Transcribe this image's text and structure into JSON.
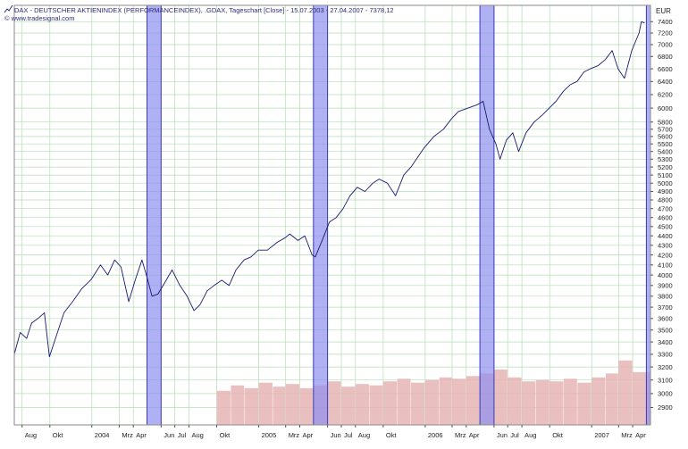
{
  "header": {
    "title": "DAX - DEUTSCHER AKTIENINDEX (PERFORMANCEINDEX), .GDAX, Tageschart [Close] - 15.07.2003 - 27.04.2007 - 7378,12",
    "source": "© www.tradesignal.com",
    "icon": "chart-line-icon"
  },
  "colors": {
    "price_line": "#1a1a6e",
    "highlight_fill": "#8f8ff0",
    "highlight_stroke": "#3a3ab8",
    "grid": "#b4dcb4",
    "volume": "#e6b4b4",
    "frame": "#8a8a8a"
  },
  "chart_data": {
    "type": "line",
    "currency_label": "EUR",
    "x_ticks": [
      {
        "label": "Aug",
        "date": "2003-08-01"
      },
      {
        "label": "Okt",
        "date": "2003-10-01"
      },
      {
        "label": "2004",
        "date": "2004-01-01"
      },
      {
        "label": "Mrz",
        "date": "2004-03-01"
      },
      {
        "label": "Apr",
        "date": "2004-04-01"
      },
      {
        "label": "Jun",
        "date": "2004-06-01"
      },
      {
        "label": "Jul",
        "date": "2004-07-01"
      },
      {
        "label": "Aug",
        "date": "2004-08-01"
      },
      {
        "label": "Okt",
        "date": "2004-10-01"
      },
      {
        "label": "2005",
        "date": "2005-01-01"
      },
      {
        "label": "Mrz",
        "date": "2005-03-01"
      },
      {
        "label": "Apr",
        "date": "2005-04-01"
      },
      {
        "label": "Jun",
        "date": "2005-06-01"
      },
      {
        "label": "Jul",
        "date": "2005-07-01"
      },
      {
        "label": "Aug",
        "date": "2005-08-01"
      },
      {
        "label": "Okt",
        "date": "2005-10-01"
      },
      {
        "label": "2006",
        "date": "2006-01-01"
      },
      {
        "label": "Mrz",
        "date": "2006-03-01"
      },
      {
        "label": "Apr",
        "date": "2006-04-01"
      },
      {
        "label": "Jun",
        "date": "2006-06-01"
      },
      {
        "label": "Jul",
        "date": "2006-07-01"
      },
      {
        "label": "Aug",
        "date": "2006-08-01"
      },
      {
        "label": "Okt",
        "date": "2006-10-01"
      },
      {
        "label": "2007",
        "date": "2007-01-01"
      },
      {
        "label": "Mrz",
        "date": "2007-03-01"
      },
      {
        "label": "Apr",
        "date": "2007-04-01"
      }
    ],
    "x_range": [
      "2003-07-15",
      "2007-05-10"
    ],
    "y_ticks": [
      2900,
      3000,
      3100,
      3200,
      3300,
      3400,
      3500,
      3600,
      3700,
      3800,
      3900,
      4000,
      4100,
      4200,
      4300,
      4400,
      4500,
      4600,
      4700,
      4800,
      4900,
      5000,
      5100,
      5200,
      5300,
      5400,
      5500,
      5600,
      5700,
      5800,
      6000,
      6200,
      6400,
      6600,
      6800,
      7000,
      7200,
      7400
    ],
    "y_scale": "log",
    "ylim": [
      2780,
      7700
    ],
    "grid": true,
    "highlight_ranges": [
      {
        "start": "2004-05-01",
        "end": "2004-06-01"
      },
      {
        "start": "2005-05-01",
        "end": "2005-06-01"
      },
      {
        "start": "2006-05-01",
        "end": "2006-06-01"
      },
      {
        "start": "2007-05-01",
        "end": "2007-06-01"
      }
    ],
    "series": [
      {
        "type": "line",
        "points": [
          [
            "2003-07-15",
            3300
          ],
          [
            "2003-07-28",
            3480
          ],
          [
            "2003-08-11",
            3430
          ],
          [
            "2003-08-22",
            3560
          ],
          [
            "2003-09-05",
            3600
          ],
          [
            "2003-09-19",
            3650
          ],
          [
            "2003-09-30",
            3280
          ],
          [
            "2003-10-15",
            3450
          ],
          [
            "2003-11-01",
            3650
          ],
          [
            "2003-11-20",
            3750
          ],
          [
            "2003-12-10",
            3870
          ],
          [
            "2003-12-31",
            3960
          ],
          [
            "2004-01-20",
            4100
          ],
          [
            "2004-02-05",
            4000
          ],
          [
            "2004-02-20",
            4150
          ],
          [
            "2004-03-05",
            4080
          ],
          [
            "2004-03-22",
            3750
          ],
          [
            "2004-04-05",
            3950
          ],
          [
            "2004-04-20",
            4150
          ],
          [
            "2004-05-01",
            3980
          ],
          [
            "2004-05-12",
            3800
          ],
          [
            "2004-05-25",
            3820
          ],
          [
            "2004-06-08",
            3920
          ],
          [
            "2004-06-25",
            4050
          ],
          [
            "2004-07-12",
            3900
          ],
          [
            "2004-07-28",
            3800
          ],
          [
            "2004-08-12",
            3670
          ],
          [
            "2004-08-25",
            3720
          ],
          [
            "2004-09-10",
            3850
          ],
          [
            "2004-09-25",
            3900
          ],
          [
            "2004-10-12",
            3950
          ],
          [
            "2004-10-28",
            3900
          ],
          [
            "2004-11-12",
            4050
          ],
          [
            "2004-11-30",
            4150
          ],
          [
            "2004-12-15",
            4180
          ],
          [
            "2004-12-31",
            4250
          ],
          [
            "2005-01-20",
            4250
          ],
          [
            "2005-02-10",
            4330
          ],
          [
            "2005-02-28",
            4380
          ],
          [
            "2005-03-10",
            4420
          ],
          [
            "2005-03-28",
            4350
          ],
          [
            "2005-04-12",
            4400
          ],
          [
            "2005-04-28",
            4200
          ],
          [
            "2005-05-05",
            4180
          ],
          [
            "2005-05-20",
            4350
          ],
          [
            "2005-06-05",
            4550
          ],
          [
            "2005-06-20",
            4600
          ],
          [
            "2005-07-05",
            4700
          ],
          [
            "2005-07-20",
            4850
          ],
          [
            "2005-08-05",
            4950
          ],
          [
            "2005-08-22",
            4900
          ],
          [
            "2005-09-08",
            5000
          ],
          [
            "2005-09-22",
            5050
          ],
          [
            "2005-10-10",
            5000
          ],
          [
            "2005-10-28",
            4850
          ],
          [
            "2005-11-15",
            5100
          ],
          [
            "2005-12-01",
            5200
          ],
          [
            "2005-12-30",
            5450
          ],
          [
            "2006-01-20",
            5600
          ],
          [
            "2006-02-10",
            5700
          ],
          [
            "2006-02-28",
            5850
          ],
          [
            "2006-03-15",
            5950
          ],
          [
            "2006-04-05",
            6000
          ],
          [
            "2006-04-25",
            6050
          ],
          [
            "2006-05-08",
            6100
          ],
          [
            "2006-05-22",
            5700
          ],
          [
            "2006-06-05",
            5500
          ],
          [
            "2006-06-14",
            5300
          ],
          [
            "2006-06-28",
            5550
          ],
          [
            "2006-07-12",
            5650
          ],
          [
            "2006-07-25",
            5400
          ],
          [
            "2006-08-10",
            5650
          ],
          [
            "2006-08-28",
            5800
          ],
          [
            "2006-09-15",
            5900
          ],
          [
            "2006-09-30",
            6000
          ],
          [
            "2006-10-15",
            6100
          ],
          [
            "2006-10-31",
            6250
          ],
          [
            "2006-11-15",
            6350
          ],
          [
            "2006-11-30",
            6400
          ],
          [
            "2006-12-15",
            6550
          ],
          [
            "2006-12-29",
            6600
          ],
          [
            "2007-01-15",
            6650
          ],
          [
            "2007-01-31",
            6750
          ],
          [
            "2007-02-15",
            6900
          ],
          [
            "2007-02-28",
            6600
          ],
          [
            "2007-03-14",
            6450
          ],
          [
            "2007-03-30",
            6900
          ],
          [
            "2007-04-15",
            7200
          ],
          [
            "2007-04-20",
            7400
          ],
          [
            "2007-04-27",
            7378
          ]
        ]
      }
    ],
    "volume": {
      "start": "2004-10-01",
      "bars": [
        {
          "date": "2004-10-01",
          "value": 3020
        },
        {
          "date": "2004-11-01",
          "value": 3060
        },
        {
          "date": "2004-12-01",
          "value": 3040
        },
        {
          "date": "2005-01-01",
          "value": 3080
        },
        {
          "date": "2005-02-01",
          "value": 3050
        },
        {
          "date": "2005-03-01",
          "value": 3070
        },
        {
          "date": "2005-04-01",
          "value": 3040
        },
        {
          "date": "2005-05-01",
          "value": 3060
        },
        {
          "date": "2005-06-01",
          "value": 3090
        },
        {
          "date": "2005-07-01",
          "value": 3050
        },
        {
          "date": "2005-08-01",
          "value": 3070
        },
        {
          "date": "2005-09-01",
          "value": 3060
        },
        {
          "date": "2005-10-01",
          "value": 3090
        },
        {
          "date": "2005-11-01",
          "value": 3110
        },
        {
          "date": "2005-12-01",
          "value": 3080
        },
        {
          "date": "2006-01-01",
          "value": 3100
        },
        {
          "date": "2006-02-01",
          "value": 3120
        },
        {
          "date": "2006-03-01",
          "value": 3110
        },
        {
          "date": "2006-04-01",
          "value": 3130
        },
        {
          "date": "2006-05-01",
          "value": 3150
        },
        {
          "date": "2006-06-01",
          "value": 3180
        },
        {
          "date": "2006-07-01",
          "value": 3120
        },
        {
          "date": "2006-08-01",
          "value": 3090
        },
        {
          "date": "2006-09-01",
          "value": 3100
        },
        {
          "date": "2006-10-01",
          "value": 3090
        },
        {
          "date": "2006-11-01",
          "value": 3110
        },
        {
          "date": "2006-12-01",
          "value": 3080
        },
        {
          "date": "2007-01-01",
          "value": 3120
        },
        {
          "date": "2007-02-01",
          "value": 3150
        },
        {
          "date": "2007-03-01",
          "value": 3250
        },
        {
          "date": "2007-04-01",
          "value": 3160
        }
      ]
    }
  }
}
